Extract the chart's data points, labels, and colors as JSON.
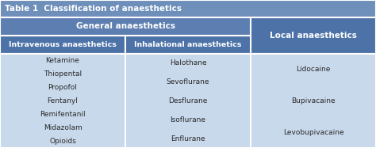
{
  "title": "Table 1  Classification of anaesthetics",
  "col1_header2": "Intravenous anaesthetics",
  "col2_header2": "Inhalational anaesthetics",
  "col3_header2": "Local anaesthetics",
  "general_header": "General anaesthetics",
  "col1_items": [
    "Ketamine",
    "Thiopental",
    "Propofol",
    "Fentanyl",
    "Remifentanil",
    "Midazolam",
    "Opioids"
  ],
  "col2_items": [
    "Halothane",
    "Sevoflurane",
    "Desflurane",
    "Isoflurane",
    "Enflurane"
  ],
  "col3_items": [
    "Lidocaine",
    "Bupivacaine",
    "Levobupivacaine"
  ],
  "color_title_bg": "#6e8fba",
  "color_general_bg": "#5c7eb0",
  "color_subheader_bg": "#4d72a8",
  "color_cell_bg": "#c8d9ec",
  "color_title_text": "#ffffff",
  "color_header_text": "#ffffff",
  "color_cell_text": "#2a2a2a",
  "color_border": "#ffffff",
  "figsize": [
    4.74,
    1.87
  ],
  "dpi": 100
}
